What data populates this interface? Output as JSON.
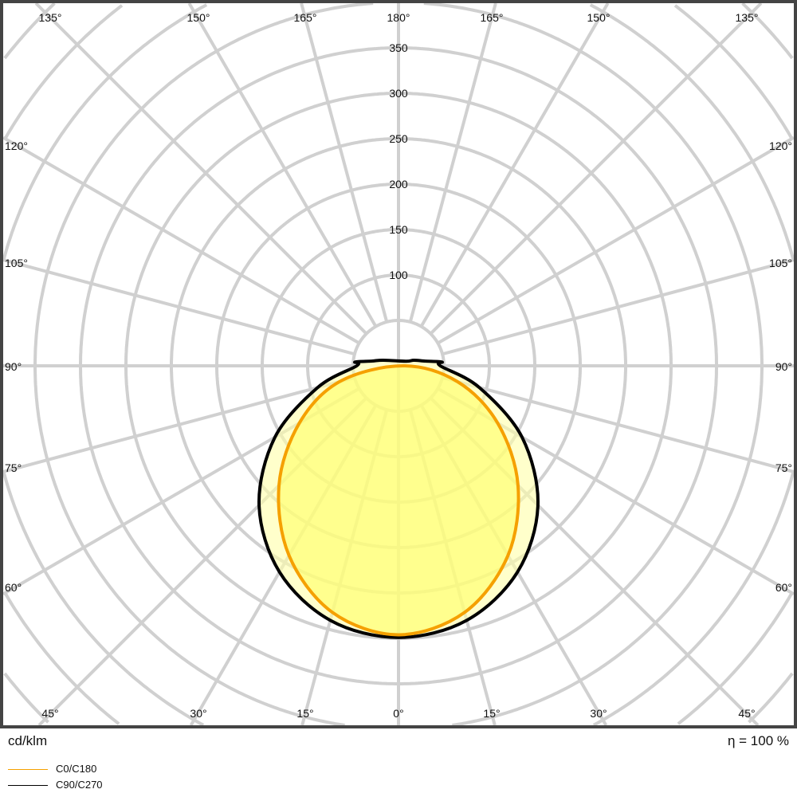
{
  "chart_data": {
    "type": "polar",
    "unit_label": "cd/klm",
    "efficiency_label": "η = 100 %",
    "radial_ticks": [
      100,
      150,
      200,
      250,
      300,
      350
    ],
    "radial_tick_labels": [
      "100",
      "150",
      "200",
      "250",
      "300",
      "350"
    ],
    "radial_grid_step": 50,
    "radial_max": 400,
    "angle_grid_step_deg": 15,
    "angle_labels": {
      "top": [
        "135°",
        "150°",
        "165°",
        "180°",
        "165°",
        "150°",
        "135°"
      ],
      "left": [
        "120°",
        "105°",
        "90°",
        "75°",
        "60°"
      ],
      "right": [
        "120°",
        "105°",
        "90°",
        "75°",
        "60°"
      ],
      "bottom": [
        "45°",
        "30°",
        "15°",
        "0°",
        "15°",
        "30°",
        "45°"
      ]
    },
    "grid": true,
    "legend_position": "bottom-left",
    "series": [
      {
        "name": "C0/C180",
        "color": "#f5a000",
        "fill": "#ffff66",
        "angles_deg": [
          0,
          15,
          30,
          45,
          60,
          75,
          90
        ],
        "values": [
          296,
          281,
          241,
          186,
          126,
          67,
          5
        ]
      },
      {
        "name": "C90/C270",
        "color": "#000000",
        "fill": "#ffffa8",
        "angles_deg": [
          0,
          15,
          30,
          45,
          60,
          75,
          90,
          95,
          100,
          110,
          120
        ],
        "values": [
          299,
          290,
          262,
          217,
          157,
          92,
          46,
          48,
          30,
          18,
          10
        ]
      }
    ]
  }
}
